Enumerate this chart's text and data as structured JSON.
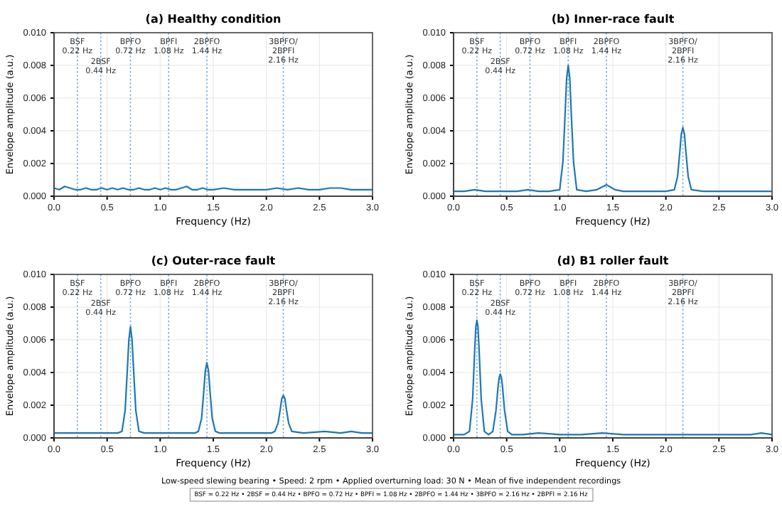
{
  "chart_data": [
    {
      "type": "line",
      "title": "(a) Healthy condition",
      "xlabel": "Frequency (Hz)",
      "ylabel": "Envelope amplitude (a.u.)",
      "xlim": [
        0,
        3
      ],
      "ylim": [
        0,
        0.01
      ],
      "xticks": [
        {
          "value": 0,
          "label": "0.0"
        },
        {
          "value": 0.5,
          "label": "0.5"
        },
        {
          "value": 1,
          "label": "1.0"
        },
        {
          "value": 1.5,
          "label": "1.5"
        },
        {
          "value": 2,
          "label": "2.0"
        },
        {
          "value": 2.5,
          "label": "2.5"
        },
        {
          "value": 3,
          "label": "3.0"
        }
      ],
      "yticks": [
        {
          "value": 0,
          "label": "0.000"
        },
        {
          "value": 0.002,
          "label": "0.002"
        },
        {
          "value": 0.004,
          "label": "0.004"
        },
        {
          "value": 0.006,
          "label": "0.006"
        },
        {
          "value": 0.008,
          "label": "0.008"
        },
        {
          "value": 0.01,
          "label": "0.010"
        }
      ],
      "grid": true,
      "marker": "none",
      "line_style": "solid",
      "series": [
        {
          "color": "#1f77b4",
          "x": [
            0,
            0.05,
            0.1,
            0.15,
            0.2,
            0.25,
            0.3,
            0.35,
            0.4,
            0.45,
            0.5,
            0.55,
            0.6,
            0.65,
            0.7,
            0.75,
            0.8,
            0.85,
            0.9,
            0.95,
            1.0,
            1.05,
            1.1,
            1.15,
            1.2,
            1.25,
            1.3,
            1.35,
            1.4,
            1.45,
            1.5,
            1.6,
            1.7,
            1.8,
            1.9,
            2.0,
            2.1,
            2.2,
            2.3,
            2.4,
            2.5,
            2.6,
            2.7,
            2.8,
            2.9,
            3.0
          ],
          "values": [
            0.0005,
            0.0004,
            0.0006,
            0.0005,
            0.0004,
            0.0004,
            0.0005,
            0.0004,
            0.0004,
            0.0005,
            0.0004,
            0.0005,
            0.0004,
            0.0005,
            0.0004,
            0.0004,
            0.0005,
            0.0004,
            0.0004,
            0.0005,
            0.0004,
            0.0005,
            0.0004,
            0.0004,
            0.0005,
            0.0006,
            0.0004,
            0.0004,
            0.0005,
            0.0004,
            0.0004,
            0.0005,
            0.0004,
            0.0004,
            0.0004,
            0.0004,
            0.0005,
            0.0004,
            0.0005,
            0.0004,
            0.0004,
            0.0005,
            0.0005,
            0.0004,
            0.0004,
            0.0004
          ]
        }
      ],
      "ref_lines": [
        {
          "axis": "x",
          "value": 0.22,
          "label": "BSF\n0.22 Hz",
          "color": "#6fa8dc",
          "line_style": "dotted"
        },
        {
          "axis": "x",
          "value": 0.44,
          "label": "2BSF\n0.44 Hz",
          "color": "#6fa8dc",
          "line_style": "dotted"
        },
        {
          "axis": "x",
          "value": 0.72,
          "label": "BPFO\n0.72 Hz",
          "color": "#6fa8dc",
          "line_style": "dotted"
        },
        {
          "axis": "x",
          "value": 1.08,
          "label": "BPFI\n1.08 Hz",
          "color": "#6fa8dc",
          "line_style": "dotted"
        },
        {
          "axis": "x",
          "value": 1.44,
          "label": "2BPFO\n1.44 Hz",
          "color": "#6fa8dc",
          "line_style": "dotted"
        },
        {
          "axis": "x",
          "value": 2.16,
          "label": "3BPFO/\n2BPFI\n2.16 Hz",
          "color": "#6fa8dc",
          "line_style": "dotted"
        }
      ]
    },
    {
      "type": "line",
      "title": "(b) Inner-race fault",
      "xlabel": "Frequency (Hz)",
      "ylabel": "Envelope amplitude (a.u.)",
      "xlim": [
        0,
        3
      ],
      "ylim": [
        0,
        0.01
      ],
      "xticks": [
        {
          "value": 0,
          "label": "0.0"
        },
        {
          "value": 0.5,
          "label": "0.5"
        },
        {
          "value": 1,
          "label": "1.0"
        },
        {
          "value": 1.5,
          "label": "1.5"
        },
        {
          "value": 2,
          "label": "2.0"
        },
        {
          "value": 2.5,
          "label": "2.5"
        },
        {
          "value": 3,
          "label": "3.0"
        }
      ],
      "yticks": [
        {
          "value": 0,
          "label": "0.000"
        },
        {
          "value": 0.002,
          "label": "0.002"
        },
        {
          "value": 0.004,
          "label": "0.004"
        },
        {
          "value": 0.006,
          "label": "0.006"
        },
        {
          "value": 0.008,
          "label": "0.008"
        },
        {
          "value": 0.01,
          "label": "0.010"
        }
      ],
      "grid": true,
      "marker": "none",
      "line_style": "solid",
      "series": [
        {
          "color": "#1f77b4",
          "x": [
            0,
            0.1,
            0.2,
            0.3,
            0.4,
            0.5,
            0.6,
            0.7,
            0.8,
            0.9,
            1.0,
            1.03,
            1.05,
            1.065,
            1.08,
            1.095,
            1.11,
            1.13,
            1.16,
            1.25,
            1.35,
            1.44,
            1.52,
            1.6,
            1.7,
            1.8,
            1.9,
            2.0,
            2.08,
            2.11,
            2.13,
            2.145,
            2.16,
            2.175,
            2.19,
            2.21,
            2.24,
            2.35,
            2.5,
            2.6,
            2.7,
            2.8,
            2.9,
            3.0
          ],
          "values": [
            0.0003,
            0.0003,
            0.0004,
            0.0003,
            0.0003,
            0.0003,
            0.0003,
            0.0004,
            0.0003,
            0.0003,
            0.0004,
            0.0021,
            0.0049,
            0.0072,
            0.008,
            0.0072,
            0.0049,
            0.0021,
            0.0004,
            0.0003,
            0.0004,
            0.0007,
            0.0004,
            0.0003,
            0.0003,
            0.0003,
            0.0003,
            0.0003,
            0.0004,
            0.0012,
            0.0026,
            0.0038,
            0.0042,
            0.0038,
            0.0026,
            0.0012,
            0.0004,
            0.0003,
            0.0003,
            0.0003,
            0.0003,
            0.0003,
            0.0003,
            0.0003
          ]
        }
      ],
      "ref_lines": [
        {
          "axis": "x",
          "value": 0.22,
          "label": "BSF\n0.22 Hz",
          "color": "#6fa8dc",
          "line_style": "dotted"
        },
        {
          "axis": "x",
          "value": 0.44,
          "label": "2BSF\n0.44 Hz",
          "color": "#6fa8dc",
          "line_style": "dotted"
        },
        {
          "axis": "x",
          "value": 0.72,
          "label": "BPFO\n0.72 Hz",
          "color": "#6fa8dc",
          "line_style": "dotted"
        },
        {
          "axis": "x",
          "value": 1.08,
          "label": "BPFI\n1.08 Hz",
          "color": "#6fa8dc",
          "line_style": "dotted"
        },
        {
          "axis": "x",
          "value": 1.44,
          "label": "2BPFO\n1.44 Hz",
          "color": "#6fa8dc",
          "line_style": "dotted"
        },
        {
          "axis": "x",
          "value": 2.16,
          "label": "3BPFO/\n2BPFI\n2.16 Hz",
          "color": "#6fa8dc",
          "line_style": "dotted"
        }
      ]
    },
    {
      "type": "line",
      "title": "(c) Outer-race fault",
      "xlabel": "Frequency (Hz)",
      "ylabel": "Envelope amplitude (a.u.)",
      "xlim": [
        0,
        3
      ],
      "ylim": [
        0,
        0.01
      ],
      "xticks": [
        {
          "value": 0,
          "label": "0.0"
        },
        {
          "value": 0.5,
          "label": "0.5"
        },
        {
          "value": 1,
          "label": "1.0"
        },
        {
          "value": 1.5,
          "label": "1.5"
        },
        {
          "value": 2,
          "label": "2.0"
        },
        {
          "value": 2.5,
          "label": "2.5"
        },
        {
          "value": 3,
          "label": "3.0"
        }
      ],
      "yticks": [
        {
          "value": 0,
          "label": "0.000"
        },
        {
          "value": 0.002,
          "label": "0.002"
        },
        {
          "value": 0.004,
          "label": "0.004"
        },
        {
          "value": 0.006,
          "label": "0.006"
        },
        {
          "value": 0.008,
          "label": "0.008"
        },
        {
          "value": 0.01,
          "label": "0.010"
        }
      ],
      "grid": true,
      "marker": "none",
      "line_style": "solid",
      "series": [
        {
          "color": "#1f77b4",
          "x": [
            0,
            0.1,
            0.2,
            0.3,
            0.4,
            0.5,
            0.6,
            0.64,
            0.67,
            0.69,
            0.705,
            0.72,
            0.735,
            0.75,
            0.77,
            0.8,
            0.85,
            0.95,
            1.05,
            1.15,
            1.25,
            1.33,
            1.36,
            1.39,
            1.41,
            1.425,
            1.44,
            1.455,
            1.47,
            1.49,
            1.52,
            1.56,
            1.65,
            1.75,
            1.85,
            1.95,
            2.05,
            2.08,
            2.11,
            2.13,
            2.145,
            2.16,
            2.175,
            2.19,
            2.21,
            2.24,
            2.35,
            2.55,
            2.7,
            2.8,
            2.9,
            3.0
          ],
          "values": [
            0.0003,
            0.0003,
            0.0003,
            0.0003,
            0.0003,
            0.0003,
            0.0003,
            0.0004,
            0.0017,
            0.0041,
            0.006,
            0.0068,
            0.006,
            0.0041,
            0.0017,
            0.0004,
            0.0003,
            0.0003,
            0.0003,
            0.0003,
            0.0003,
            0.0003,
            0.0004,
            0.0012,
            0.0028,
            0.0041,
            0.0046,
            0.0041,
            0.0028,
            0.0012,
            0.0004,
            0.0003,
            0.0003,
            0.0003,
            0.0003,
            0.0003,
            0.0003,
            0.0004,
            0.0009,
            0.0017,
            0.0024,
            0.0026,
            0.0024,
            0.0017,
            0.0009,
            0.0004,
            0.0003,
            0.0004,
            0.0003,
            0.0004,
            0.0003,
            0.0003
          ]
        }
      ],
      "ref_lines": [
        {
          "axis": "x",
          "value": 0.22,
          "label": "BSF\n0.22 Hz",
          "color": "#6fa8dc",
          "line_style": "dotted"
        },
        {
          "axis": "x",
          "value": 0.44,
          "label": "2BSF\n0.44 Hz",
          "color": "#6fa8dc",
          "line_style": "dotted"
        },
        {
          "axis": "x",
          "value": 0.72,
          "label": "BPFO\n0.72 Hz",
          "color": "#6fa8dc",
          "line_style": "dotted"
        },
        {
          "axis": "x",
          "value": 1.08,
          "label": "BPFI\n1.08 Hz",
          "color": "#6fa8dc",
          "line_style": "dotted"
        },
        {
          "axis": "x",
          "value": 1.44,
          "label": "2BPFO\n1.44 Hz",
          "color": "#6fa8dc",
          "line_style": "dotted"
        },
        {
          "axis": "x",
          "value": 2.16,
          "label": "3BPFO/\n2BPFI\n2.16 Hz",
          "color": "#6fa8dc",
          "line_style": "dotted"
        }
      ]
    },
    {
      "type": "line",
      "title": "(d) B1 roller fault",
      "xlabel": "Frequency (Hz)",
      "ylabel": "Envelope amplitude (a.u.)",
      "xlim": [
        0,
        3
      ],
      "ylim": [
        0,
        0.01
      ],
      "xticks": [
        {
          "value": 0,
          "label": "0.0"
        },
        {
          "value": 0.5,
          "label": "0.5"
        },
        {
          "value": 1,
          "label": "1.0"
        },
        {
          "value": 1.5,
          "label": "1.5"
        },
        {
          "value": 2,
          "label": "2.0"
        },
        {
          "value": 2.5,
          "label": "2.5"
        },
        {
          "value": 3,
          "label": "3.0"
        }
      ],
      "yticks": [
        {
          "value": 0,
          "label": "0.000"
        },
        {
          "value": 0.002,
          "label": "0.002"
        },
        {
          "value": 0.004,
          "label": "0.004"
        },
        {
          "value": 0.006,
          "label": "0.006"
        },
        {
          "value": 0.008,
          "label": "0.008"
        },
        {
          "value": 0.01,
          "label": "0.010"
        }
      ],
      "grid": true,
      "marker": "none",
      "line_style": "solid",
      "series": [
        {
          "color": "#1f77b4",
          "x": [
            0,
            0.1,
            0.15,
            0.18,
            0.2,
            0.21,
            0.22,
            0.23,
            0.24,
            0.26,
            0.29,
            0.33,
            0.37,
            0.4,
            0.42,
            0.43,
            0.44,
            0.45,
            0.46,
            0.48,
            0.51,
            0.55,
            0.65,
            0.8,
            1.0,
            1.2,
            1.4,
            1.6,
            1.8,
            2.0,
            2.2,
            2.4,
            2.6,
            2.8,
            2.9,
            3.0
          ],
          "values": [
            0.0002,
            0.0002,
            0.0004,
            0.0024,
            0.0055,
            0.0068,
            0.0072,
            0.0068,
            0.0055,
            0.0024,
            0.0004,
            0.0002,
            0.0004,
            0.0017,
            0.0032,
            0.0037,
            0.0039,
            0.0037,
            0.0032,
            0.0017,
            0.0004,
            0.0002,
            0.0002,
            0.0003,
            0.0002,
            0.0002,
            0.0003,
            0.0002,
            0.0002,
            0.0002,
            0.0002,
            0.0002,
            0.0002,
            0.0002,
            0.0003,
            0.0002
          ]
        }
      ],
      "ref_lines": [
        {
          "axis": "x",
          "value": 0.22,
          "label": "BSF\n0.22 Hz",
          "color": "#6fa8dc",
          "line_style": "dotted"
        },
        {
          "axis": "x",
          "value": 0.44,
          "label": "2BSF\n0.44 Hz",
          "color": "#6fa8dc",
          "line_style": "dotted"
        },
        {
          "axis": "x",
          "value": 0.72,
          "label": "BPFO\n0.72 Hz",
          "color": "#6fa8dc",
          "line_style": "dotted"
        },
        {
          "axis": "x",
          "value": 1.08,
          "label": "BPFI\n1.08 Hz",
          "color": "#6fa8dc",
          "line_style": "dotted"
        },
        {
          "axis": "x",
          "value": 1.44,
          "label": "2BPFO\n1.44 Hz",
          "color": "#6fa8dc",
          "line_style": "dotted"
        },
        {
          "axis": "x",
          "value": 2.16,
          "label": "3BPFO/\n2BPFI\n2.16 Hz",
          "color": "#6fa8dc",
          "line_style": "dotted"
        }
      ],
      "annotations": [
        "Low-speed slewing bearing  •  Speed: 2 rpm  •  Applied overturning load: 30 N  •  Mean of five independent recordings",
        "BSF = 0.22 Hz  •  2BSF = 0.44 Hz  •  BPFO = 0.72 Hz  •  BPFI = 1.08 Hz  •  2BPFO = 1.44 Hz  •  3BPFO = 2.16 Hz  •  2BPFI = 2.16 Hz"
      ]
    }
  ]
}
